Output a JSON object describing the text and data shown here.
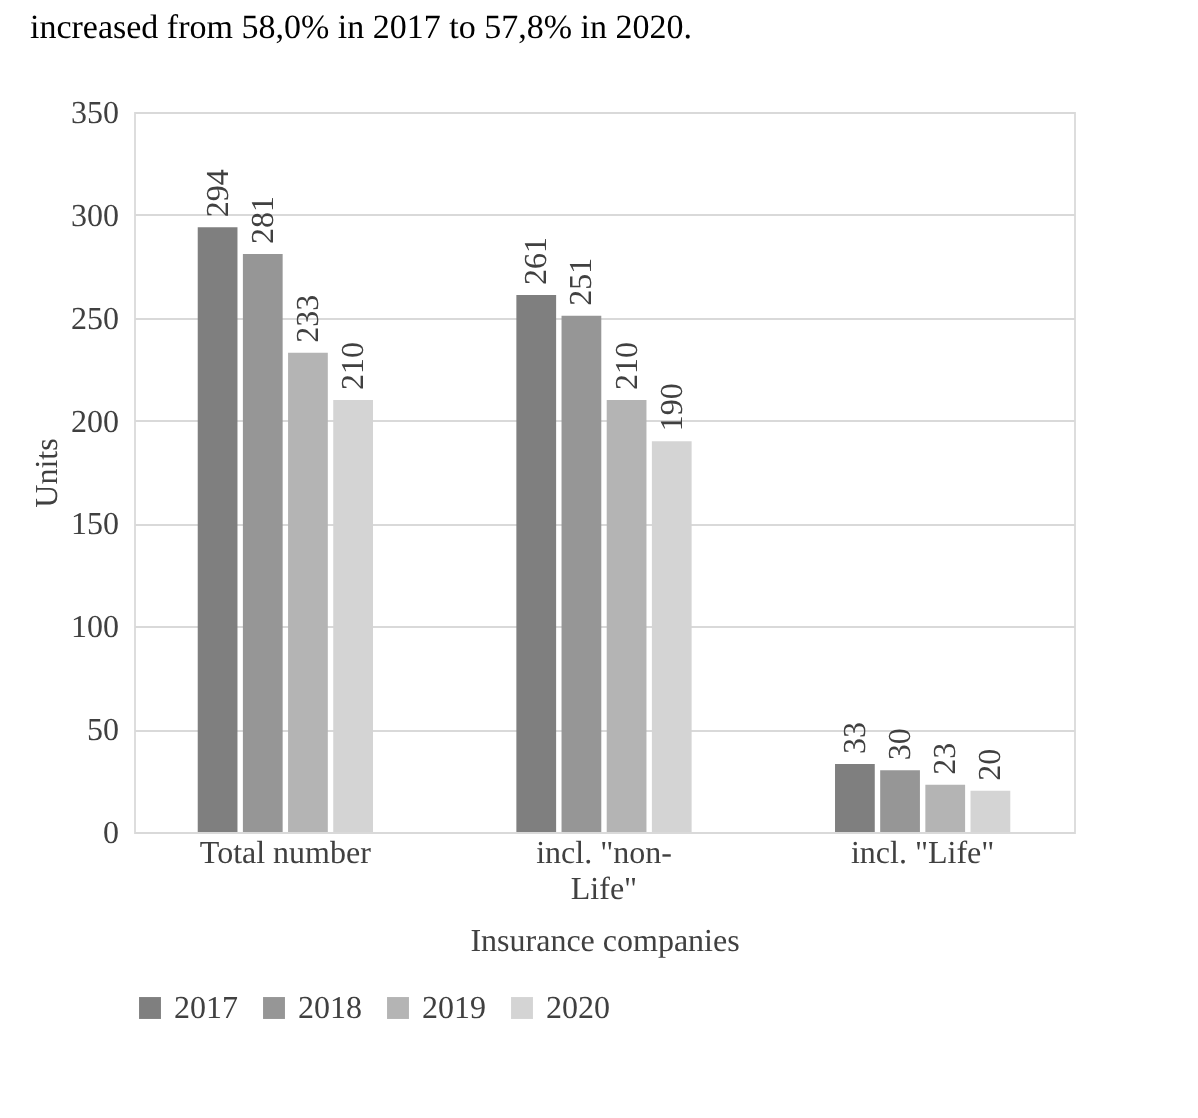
{
  "chart_data": {
    "type": "bar",
    "xlabel": "Insurance companies",
    "ylabel": "Units",
    "annotations": [
      "increased from 58,0% in 2017 to 57,8% in 2020."
    ],
    "categories": [
      "Total number",
      "incl. \"non-Life\"",
      "incl. \"Life\""
    ],
    "series": [
      {
        "name": "2017",
        "color": "#7f7f7f",
        "values": [
          294,
          261,
          33
        ]
      },
      {
        "name": "2018",
        "color": "#969696",
        "values": [
          281,
          251,
          30
        ]
      },
      {
        "name": "2019",
        "color": "#b4b4b4",
        "values": [
          233,
          210,
          23
        ]
      },
      {
        "name": "2020",
        "color": "#d4d4d4",
        "values": [
          210,
          190,
          20
        ]
      }
    ],
    "ylim": [
      0,
      350
    ],
    "yticks": [
      0,
      50,
      100,
      150,
      200,
      250,
      300,
      350
    ],
    "grid": "y",
    "legend": "bottom",
    "data_labels": true
  }
}
